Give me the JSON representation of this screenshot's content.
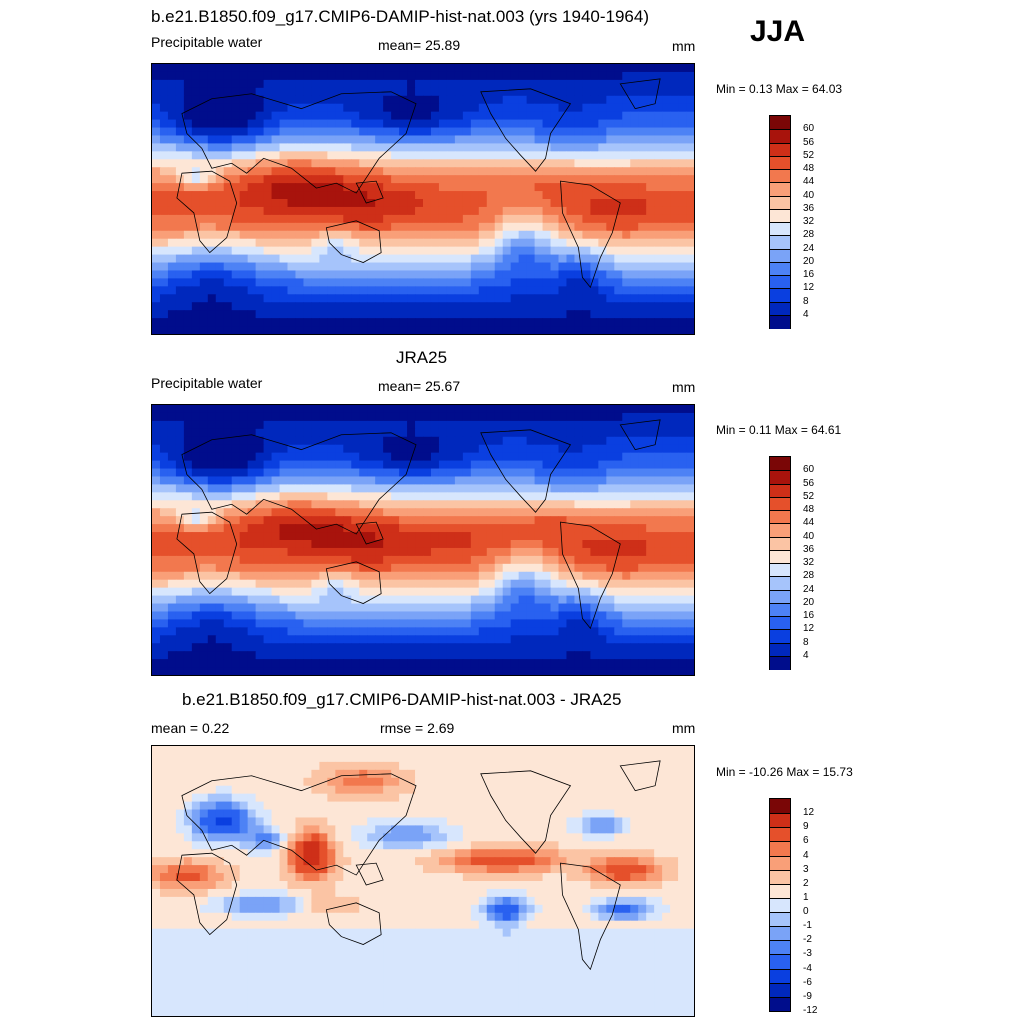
{
  "season": "JJA",
  "units": "mm",
  "colors": {
    "abs": [
      "#000d8c",
      "#0028bd",
      "#0a3fe0",
      "#2961f0",
      "#4d82f5",
      "#7aa3f7",
      "#a6c4fb",
      "#d7e6fd",
      "#fde6d6",
      "#fbc4a4",
      "#f99f78",
      "#f2784e",
      "#e5502b",
      "#ce2f18",
      "#a8130c",
      "#7a0606"
    ],
    "diff": [
      "#000d8c",
      "#0028bd",
      "#0a3fe0",
      "#2961f0",
      "#4d82f5",
      "#7aa3f7",
      "#a6c4fb",
      "#d7e6fd",
      "#fde6d6",
      "#fbc4a4",
      "#f99f78",
      "#f2784e",
      "#e5502b",
      "#ce2f18",
      "#7a0606"
    ],
    "coast": "#000000"
  },
  "panels": [
    {
      "id": "model",
      "title": "b.e21.B1850.f09_g17.CMIP6-DAMIP-hist-nat.003 (yrs 1940-1964)",
      "left_label": "Precipitable water",
      "center_label": "mean=  25.89",
      "right_label": "mm",
      "minmax": "Min =   0.13 Max =  64.03",
      "palette": "abs",
      "map": {
        "type": "abs",
        "min": 0.13,
        "max": 64.03,
        "mean": 25.89
      },
      "levels": [
        "60",
        "56",
        "52",
        "48",
        "44",
        "40",
        "36",
        "32",
        "28",
        "24",
        "20",
        "16",
        "12",
        "8",
        "4"
      ]
    },
    {
      "id": "obs",
      "title": "JRA25",
      "left_label": "Precipitable water",
      "center_label": "mean=  25.67",
      "right_label": "mm",
      "minmax": "Min =   0.11 Max =  64.61",
      "palette": "abs",
      "map": {
        "type": "abs",
        "min": 0.11,
        "max": 64.61,
        "mean": 25.67
      },
      "levels": [
        "60",
        "56",
        "52",
        "48",
        "44",
        "40",
        "36",
        "32",
        "28",
        "24",
        "20",
        "16",
        "12",
        "8",
        "4"
      ]
    },
    {
      "id": "diff",
      "title": "b.e21.B1850.f09_g17.CMIP6-DAMIP-hist-nat.003 - JRA25",
      "left_label": "mean =   0.22",
      "center_label": "rmse =   2.69",
      "right_label": "mm",
      "minmax": "Min = -10.26 Max =  15.73",
      "palette": "diff",
      "map": {
        "type": "diff",
        "min": -10.26,
        "max": 15.73,
        "mean": 0.22,
        "rmse": 2.69
      },
      "levels": [
        "12",
        "9",
        "6",
        "4",
        "3",
        "2",
        "1",
        "0",
        "-1",
        "-2",
        "-3",
        "-4",
        "-6",
        "-9",
        "-12"
      ]
    }
  ]
}
